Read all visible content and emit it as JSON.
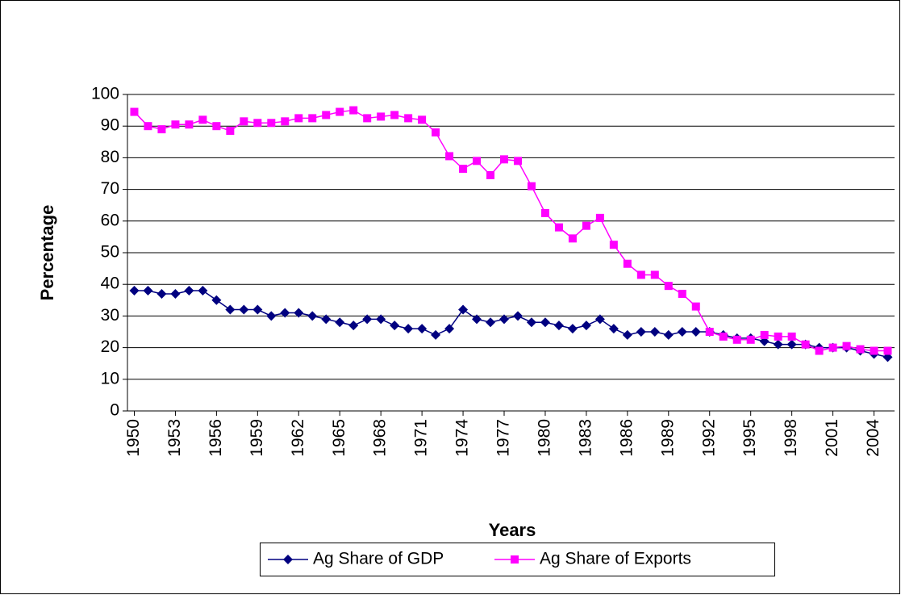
{
  "chart_data": {
    "type": "line",
    "x_label": "Years",
    "y_label": "Percentage",
    "x": [
      1950,
      1951,
      1952,
      1953,
      1954,
      1955,
      1956,
      1957,
      1958,
      1959,
      1960,
      1961,
      1962,
      1963,
      1964,
      1965,
      1966,
      1967,
      1968,
      1969,
      1970,
      1971,
      1972,
      1973,
      1974,
      1975,
      1976,
      1977,
      1978,
      1979,
      1980,
      1981,
      1982,
      1983,
      1984,
      1985,
      1986,
      1987,
      1988,
      1989,
      1990,
      1991,
      1992,
      1993,
      1994,
      1995,
      1996,
      1997,
      1998,
      1999,
      2000,
      2001,
      2002,
      2003,
      2004,
      2005
    ],
    "xlim": [
      1949.5,
      2005.5
    ],
    "xticks": [
      1950,
      1953,
      1956,
      1959,
      1962,
      1965,
      1968,
      1971,
      1974,
      1977,
      1980,
      1983,
      1986,
      1989,
      1992,
      1995,
      1998,
      2001,
      2004
    ],
    "ylim": [
      0,
      100
    ],
    "yticks": [
      0,
      10,
      20,
      30,
      40,
      50,
      60,
      70,
      80,
      90,
      100
    ],
    "grid": true,
    "legend": "bottom",
    "series": [
      {
        "name": "Ag Share of GDP",
        "color": "#000080",
        "marker": "diamond",
        "values": [
          38,
          38,
          37,
          37,
          38,
          38,
          35,
          32,
          32,
          32,
          30,
          31,
          31,
          30,
          29,
          28,
          27,
          29,
          29,
          27,
          26,
          26,
          24,
          26,
          32,
          29,
          28,
          29,
          30,
          28,
          28,
          27,
          26,
          27,
          29,
          26,
          24,
          25,
          25,
          24,
          25,
          25,
          25,
          24,
          23,
          23,
          22,
          21,
          21,
          21,
          20,
          20,
          20,
          19,
          18,
          17
        ]
      },
      {
        "name": "Ag Share of Exports",
        "color": "#FF00FF",
        "marker": "square",
        "values": [
          94.5,
          90,
          89,
          90.5,
          90.5,
          92,
          90,
          88.5,
          91.5,
          91,
          91,
          91.5,
          92.5,
          92.5,
          93.5,
          94.5,
          95,
          92.5,
          93,
          93.5,
          92.5,
          92,
          88,
          80.5,
          76.5,
          79,
          74.5,
          79.5,
          79,
          71,
          62.5,
          58,
          54.5,
          58.5,
          61,
          52.5,
          46.5,
          43,
          43,
          39.5,
          37,
          33,
          25,
          23.5,
          22.5,
          22.5,
          24,
          23.5,
          23.5,
          21,
          19,
          20,
          20.5,
          19.5,
          19,
          19
        ]
      }
    ]
  }
}
